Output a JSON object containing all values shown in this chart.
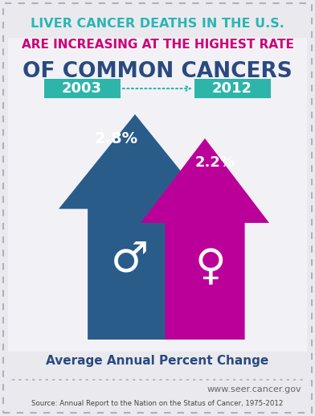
{
  "bg_color": "#eaeaee",
  "inner_bg_color": "#f2f2f6",
  "title_line1": "LIVER CANCER DEATHS IN THE U.S.",
  "title_line2": "ARE INCREASING AT THE HIGHEST RATE",
  "title_line3": "OF COMMON CANCERS",
  "title_color1": "#2db5b5",
  "title_color2": "#cc0077",
  "title_color3": "#2a4a7f",
  "year_start": "2003",
  "year_end": "2012",
  "year_box_color": "#2db5aa",
  "male_pct": "2.8%",
  "female_pct": "2.2%",
  "male_color": "#2a5c8a",
  "female_color": "#bb0099",
  "arrow_label": "Average Annual Percent Change",
  "arrow_label_color": "#2a4a7f",
  "website": "www.seer.cancer.gov",
  "source": "Source: Annual Report to the Nation on the Status of Cancer, 1975-2012",
  "male_symbol": "♂",
  "female_symbol": "♀",
  "border_color": "#b0b0bc",
  "dot_color": "#b0b0bc"
}
